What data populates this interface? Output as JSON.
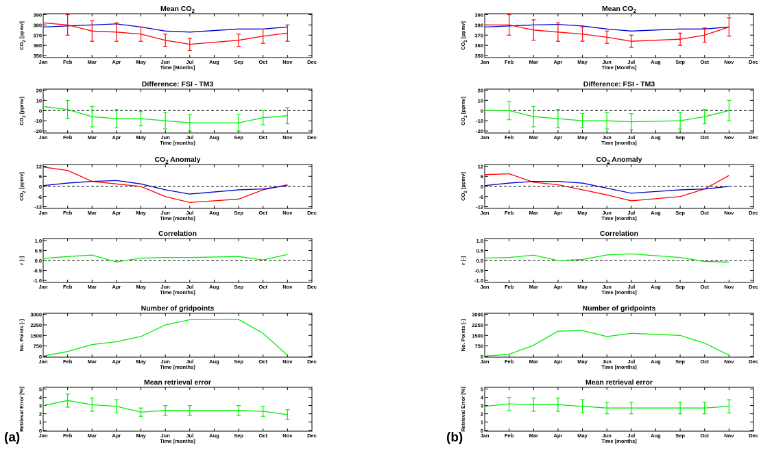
{
  "panel_labels": [
    "(a)",
    "(b)"
  ],
  "colors": {
    "red": "#ff0000",
    "blue": "#0000cc",
    "green": "#00ee00",
    "axis": "#000000"
  },
  "chart_data": [
    {
      "panel": "(a)",
      "type": "line",
      "title": "Mean CO<sub>2</sub>",
      "xlabel": "Time [Months]",
      "ylabel": "CO<sub>2</sub> [ppmv]",
      "categories": [
        "Jan",
        "Feb",
        "Mar",
        "Apr",
        "May",
        "Jun",
        "Jul",
        "Aug",
        "Sep",
        "Oct",
        "Nov",
        "Dec"
      ],
      "ylim": [
        348,
        391
      ],
      "yticks": [
        350,
        360,
        370,
        380,
        390
      ],
      "zero_line": false,
      "series": [
        {
          "color": "blue",
          "x": [
            0,
            1,
            2,
            3,
            4,
            5,
            6,
            8,
            9,
            10
          ],
          "values": [
            378,
            379,
            380,
            381,
            378,
            374,
            373,
            376,
            376,
            378
          ]
        },
        {
          "color": "red",
          "x": [
            0,
            1,
            2,
            3,
            4,
            5,
            6,
            8,
            9,
            10
          ],
          "values": [
            382,
            380,
            374,
            373,
            371,
            365,
            361,
            365,
            369,
            372
          ],
          "errors": [
            0,
            10,
            10,
            9,
            7,
            6,
            6,
            6,
            7,
            8
          ]
        }
      ]
    },
    {
      "panel": "(a)",
      "type": "line",
      "title": "Difference: FSI - TM3",
      "xlabel": "Time [months]",
      "ylabel": "CO<sub>2</sub> [ppmv]",
      "categories": [
        "Jan",
        "Feb",
        "Mar",
        "Apr",
        "May",
        "Jun",
        "Jul",
        "Aug",
        "Sep",
        "Oct",
        "Nov",
        "Dec"
      ],
      "ylim": [
        -22,
        21
      ],
      "yticks": [
        -20,
        -10,
        0,
        10,
        20
      ],
      "zero_line": true,
      "series": [
        {
          "color": "green",
          "x": [
            0,
            1,
            2,
            3,
            4,
            5,
            6,
            8,
            9,
            10
          ],
          "values": [
            4,
            1,
            -6,
            -8,
            -8,
            -10,
            -12,
            -12,
            -7,
            -5
          ],
          "errors": [
            0,
            9,
            10,
            9,
            7,
            8,
            8,
            8,
            7,
            8
          ]
        }
      ]
    },
    {
      "panel": "(a)",
      "type": "line",
      "title": "CO<sub>2</sub> Anomaly",
      "xlabel": "Time [months]",
      "ylabel": "CO<sub>2</sub> [ppmv]",
      "categories": [
        "Jan",
        "Feb",
        "Mar",
        "Apr",
        "May",
        "Jun",
        "Jul",
        "Aug",
        "Sep",
        "Oct",
        "Nov",
        "Dec"
      ],
      "ylim": [
        -13,
        13
      ],
      "yticks": [
        -12,
        -6,
        0,
        6,
        12
      ],
      "zero_line": true,
      "series": [
        {
          "color": "red",
          "x": [
            0,
            1,
            2,
            3,
            4,
            5,
            6,
            8,
            9,
            10
          ],
          "values": [
            11.5,
            9.5,
            3,
            1.5,
            0,
            -6,
            -9.5,
            -7.5,
            -2,
            1
          ]
        },
        {
          "color": "blue",
          "x": [
            0,
            1,
            2,
            3,
            4,
            5,
            6,
            8,
            9,
            10
          ],
          "values": [
            0.5,
            2,
            3,
            3.5,
            1.5,
            -2,
            -4.5,
            -2,
            -1.5,
            0.5
          ]
        }
      ]
    },
    {
      "panel": "(a)",
      "type": "line",
      "title": "Correlation",
      "xlabel": "Time [months]",
      "ylabel": "r [-]",
      "categories": [
        "Jan",
        "Feb",
        "Mar",
        "Apr",
        "May",
        "Jun",
        "Jul",
        "Aug",
        "Sep",
        "Oct",
        "Nov",
        "Dec"
      ],
      "ylim": [
        -1.1,
        1.1
      ],
      "yticks": [
        -1.0,
        -0.5,
        0.0,
        0.5,
        1.0
      ],
      "zero_line": true,
      "series": [
        {
          "color": "green",
          "x": [
            0,
            1,
            2,
            3,
            4,
            5,
            6,
            8,
            9,
            10
          ],
          "values": [
            0.1,
            0.2,
            0.27,
            -0.07,
            0.12,
            0.15,
            0.15,
            0.2,
            0.03,
            0.3
          ]
        }
      ]
    },
    {
      "panel": "(a)",
      "type": "line",
      "title": "Number of gridpoints",
      "xlabel": "Time [months]",
      "ylabel": "No. Points [-]",
      "categories": [
        "Jan",
        "Feb",
        "Mar",
        "Apr",
        "May",
        "Jun",
        "Jul",
        "Aug",
        "Sep",
        "Oct",
        "Nov",
        "Dec"
      ],
      "ylim": [
        -50,
        3080
      ],
      "yticks": [
        0,
        750,
        1500,
        2250,
        3000
      ],
      "ytick_labels": [
        "0",
        "750",
        "1500",
        "2250",
        "3000"
      ],
      "zero_line": false,
      "series": [
        {
          "color": "green",
          "x": [
            0,
            1,
            2,
            3,
            4,
            5,
            6,
            8,
            9,
            10
          ],
          "values": [
            30,
            350,
            850,
            1050,
            1420,
            2250,
            2620,
            2640,
            1650,
            80
          ]
        }
      ]
    },
    {
      "panel": "(a)",
      "type": "line",
      "title": "Mean retrieval error",
      "xlabel": "Time [months]",
      "ylabel": "Retrieval Error [%]",
      "categories": [
        "Jan",
        "Feb",
        "Mar",
        "Apr",
        "May",
        "Jun",
        "Jul",
        "Aug",
        "Sep",
        "Oct",
        "Nov",
        "Dec"
      ],
      "ylim": [
        -0.1,
        5.2
      ],
      "yticks": [
        0,
        1,
        2,
        3,
        4,
        5
      ],
      "zero_line": false,
      "series": [
        {
          "color": "green",
          "x": [
            0,
            1,
            2,
            3,
            4,
            5,
            6,
            8,
            9,
            10
          ],
          "values": [
            3.0,
            3.6,
            3.1,
            2.9,
            2.2,
            2.4,
            2.4,
            2.4,
            2.3,
            1.9
          ],
          "errors": [
            0,
            0.8,
            0.8,
            0.8,
            0.5,
            0.6,
            0.6,
            0.6,
            0.6,
            0.6
          ]
        }
      ]
    },
    {
      "panel": "(b)",
      "type": "line",
      "title": "Mean CO<sub>2</sub>",
      "xlabel": "Time [Months]",
      "ylabel": "CO<sub>2</sub> [ppmv]",
      "categories": [
        "Jan",
        "Feb",
        "Mar",
        "Apr",
        "May",
        "Jun",
        "Jul",
        "Aug",
        "Sep",
        "Oct",
        "Nov",
        "Dec"
      ],
      "ylim": [
        348,
        391
      ],
      "yticks": [
        350,
        360,
        370,
        380,
        390
      ],
      "zero_line": false,
      "series": [
        {
          "color": "blue",
          "x": [
            0,
            1,
            2,
            3,
            4,
            5,
            6,
            8,
            9,
            10
          ],
          "values": [
            378,
            379,
            380,
            380.5,
            379,
            376,
            374,
            376,
            376,
            378
          ]
        },
        {
          "color": "red",
          "x": [
            0,
            1,
            2,
            3,
            4,
            5,
            6,
            8,
            9,
            10
          ],
          "values": [
            380,
            380,
            375,
            373,
            371,
            368,
            364,
            366,
            370,
            378
          ],
          "errors": [
            0,
            10,
            10,
            9,
            7,
            6,
            6,
            6,
            7,
            9
          ]
        }
      ]
    },
    {
      "panel": "(b)",
      "type": "line",
      "title": "Difference: FSI - TM3",
      "xlabel": "Time [months]",
      "ylabel": "CO<sub>2</sub> [ppmv]",
      "categories": [
        "Jan",
        "Feb",
        "Mar",
        "Apr",
        "May",
        "Jun",
        "Jul",
        "Aug",
        "Sep",
        "Oct",
        "Nov",
        "Dec"
      ],
      "ylim": [
        -22,
        21
      ],
      "yticks": [
        -20,
        -10,
        0,
        10,
        20
      ],
      "zero_line": true,
      "series": [
        {
          "color": "green",
          "x": [
            0,
            1,
            2,
            3,
            4,
            5,
            6,
            8,
            9,
            10
          ],
          "values": [
            0,
            0,
            -6,
            -8,
            -10,
            -10,
            -11,
            -10,
            -6,
            0
          ],
          "errors": [
            0,
            9,
            10,
            9,
            7,
            8,
            8,
            8,
            7,
            10
          ]
        }
      ]
    },
    {
      "panel": "(b)",
      "type": "line",
      "title": "CO<sub>2</sub> Anomaly",
      "xlabel": "Time [months]",
      "ylabel": "CO<sub>2</sub> [ppmv]",
      "categories": [
        "Jan",
        "Feb",
        "Mar",
        "Apr",
        "May",
        "Jun",
        "Jul",
        "Aug",
        "Sep",
        "Oct",
        "Nov",
        "Dec"
      ],
      "ylim": [
        -13,
        13
      ],
      "yticks": [
        -12,
        -6,
        0,
        6,
        12
      ],
      "zero_line": true,
      "series": [
        {
          "color": "red",
          "x": [
            0,
            1,
            2,
            3,
            4,
            5,
            6,
            8,
            9,
            10
          ],
          "values": [
            7,
            7.5,
            2.5,
            1,
            -2,
            -5,
            -8.5,
            -6,
            -1.5,
            6.5
          ]
        },
        {
          "color": "blue",
          "x": [
            0,
            1,
            2,
            3,
            4,
            5,
            6,
            8,
            9,
            10
          ],
          "values": [
            0.5,
            2,
            3,
            3,
            2,
            -1,
            -4,
            -2,
            -1.5,
            0
          ]
        }
      ]
    },
    {
      "panel": "(b)",
      "type": "line",
      "title": "Correlation",
      "xlabel": "Time [months]",
      "ylabel": "r [-]",
      "categories": [
        "Jan",
        "Feb",
        "Mar",
        "Apr",
        "May",
        "Jun",
        "Jul",
        "Aug",
        "Sep",
        "Oct",
        "Nov",
        "Dec"
      ],
      "ylim": [
        -1.1,
        1.1
      ],
      "yticks": [
        -1.0,
        -0.5,
        0.0,
        0.5,
        1.0
      ],
      "zero_line": true,
      "series": [
        {
          "color": "green",
          "x": [
            0,
            1,
            2,
            3,
            4,
            5,
            6,
            8,
            9,
            10
          ],
          "values": [
            0.12,
            0.15,
            0.27,
            0.0,
            0.05,
            0.28,
            0.33,
            0.15,
            -0.05,
            -0.08
          ]
        }
      ]
    },
    {
      "panel": "(b)",
      "type": "line",
      "title": "Number of gridpoints",
      "xlabel": "Time [months]",
      "ylabel": "No. Points [-]",
      "categories": [
        "Jan",
        "Feb",
        "Mar",
        "Apr",
        "May",
        "Jun",
        "Jul",
        "Aug",
        "Sep",
        "Oct",
        "Nov",
        "Dec"
      ],
      "ylim": [
        -50,
        3080
      ],
      "yticks": [
        0,
        750,
        1500,
        2250,
        3000
      ],
      "ytick_labels": [
        "0",
        "750",
        "1500",
        "2250",
        "3000"
      ],
      "zero_line": false,
      "series": [
        {
          "color": "green",
          "x": [
            0,
            1,
            2,
            3,
            4,
            5,
            6,
            8,
            9,
            10
          ],
          "values": [
            30,
            150,
            800,
            1800,
            1850,
            1420,
            1650,
            1500,
            950,
            80
          ]
        }
      ]
    },
    {
      "panel": "(b)",
      "type": "line",
      "title": "Mean retrieval error",
      "xlabel": "Time [months]",
      "ylabel": "Retrieval Error [%]",
      "categories": [
        "Jan",
        "Feb",
        "Mar",
        "Apr",
        "May",
        "Jun",
        "Jul",
        "Aug",
        "Sep",
        "Oct",
        "Nov",
        "Dec"
      ],
      "ylim": [
        -0.1,
        5.2
      ],
      "yticks": [
        0,
        1,
        2,
        3,
        4,
        5
      ],
      "zero_line": false,
      "series": [
        {
          "color": "green",
          "x": [
            0,
            1,
            2,
            3,
            4,
            5,
            6,
            8,
            9,
            10
          ],
          "values": [
            2.9,
            3.2,
            3.1,
            3.1,
            2.9,
            2.7,
            2.7,
            2.7,
            2.7,
            2.9
          ],
          "errors": [
            0,
            0.8,
            0.8,
            0.8,
            0.8,
            0.7,
            0.7,
            0.7,
            0.7,
            0.8
          ]
        }
      ]
    }
  ]
}
